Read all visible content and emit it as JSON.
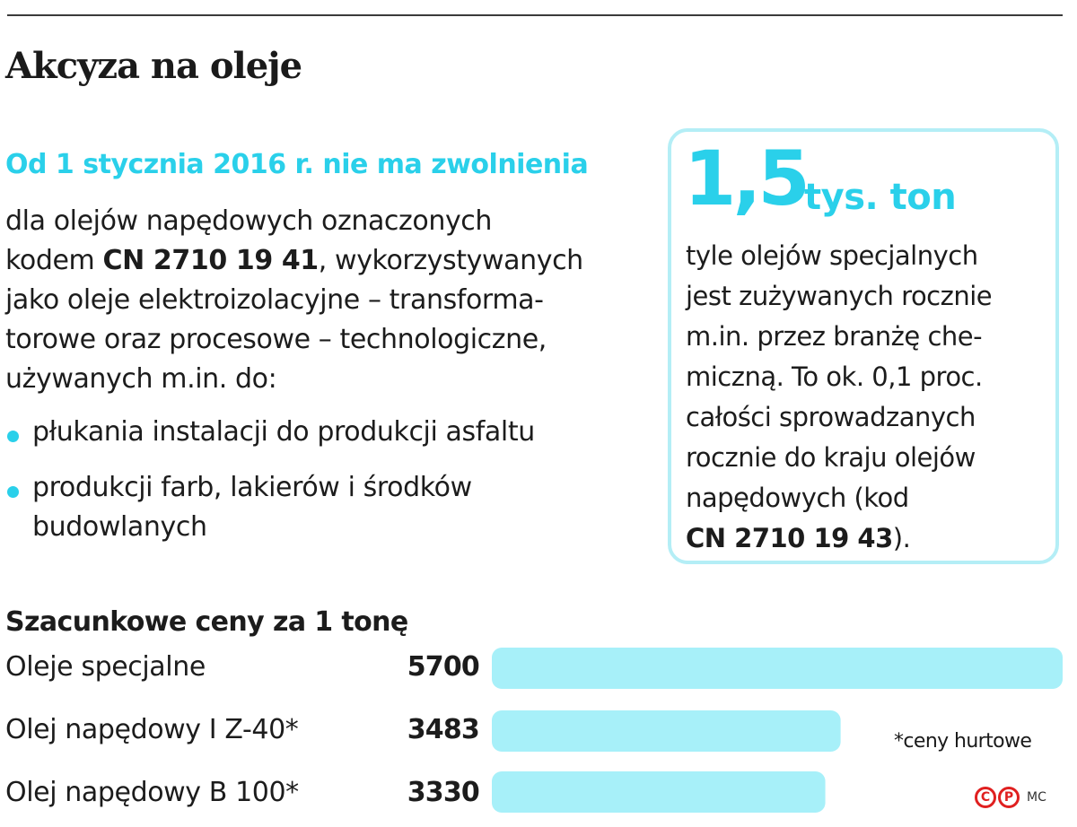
{
  "title": "Akcyza na oleje",
  "subheading": "Od 1 stycznia 2016 r. nie ma zwolnienia",
  "body": {
    "line1": "dla olejów napędowych oznaczonych",
    "line2_pre": "kodem ",
    "line2_code": "CN 2710 19 41",
    "line2_post": ", wykorzystywanych",
    "line3": "jako oleje elektroizolacyjne – transforma-",
    "line4": "torowe oraz procesowe – technologiczne,",
    "line5": "używanych m.in. do:"
  },
  "bullets": [
    {
      "line1": "płukania instalacji do produkcji asfaltu",
      "line2": ""
    },
    {
      "line1": "produkcji farb, lakierów i środków",
      "line2": "budowlanych"
    }
  ],
  "callout": {
    "big_number": "1,5",
    "unit": "tys. ton",
    "lines": [
      "tyle olejów specjalnych",
      "jest zużywanych rocznie",
      "m.in. przez branżę che-",
      "miczną. To ok. 0,1 proc.",
      "całości sprowadzanych",
      "rocznie do kraju olejów",
      "napędowych (kod"
    ],
    "code": "CN 2710 19 43",
    "code_suffix": ")."
  },
  "colors": {
    "accent": "#2ad0ea",
    "bar": "#a7f0f9",
    "callout_border": "#b4eef6",
    "credit": "#e02020"
  },
  "chart_data": {
    "type": "bar",
    "orientation": "horizontal",
    "title": "Szacunkowe ceny za 1 tonę",
    "categories": [
      "Oleje specjalne",
      "Olej napędowy I Z-40*",
      "Olej napędowy B 100*"
    ],
    "values": [
      5700,
      3483,
      3330
    ],
    "value_labels": [
      "5700",
      "3483",
      "3330"
    ],
    "xlim": [
      0,
      5700
    ],
    "grid": false,
    "footnote": "*ceny hurtowe"
  },
  "credit": {
    "c_symbol": "C",
    "p_symbol": "P",
    "initials": "MC"
  }
}
